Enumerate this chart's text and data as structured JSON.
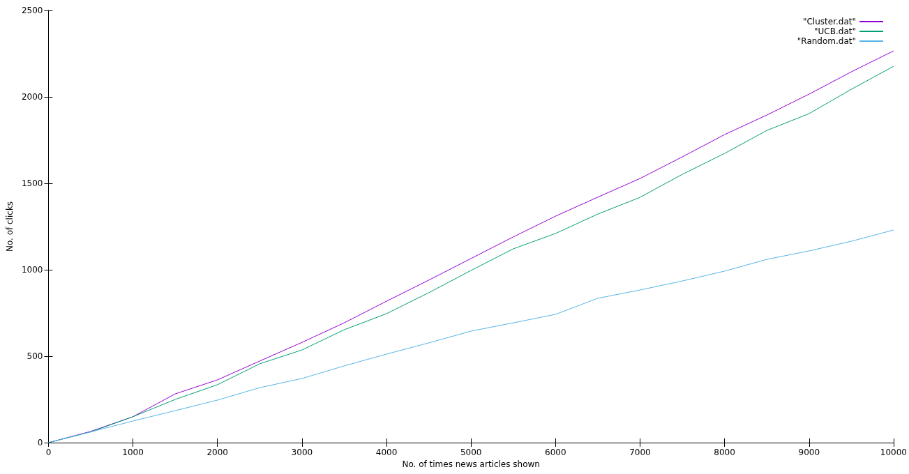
{
  "chart_data": {
    "type": "line",
    "xlabel": "No. of times news articles shown",
    "ylabel": "No. of clicks",
    "x": [
      0,
      500,
      1000,
      1500,
      2000,
      2500,
      3000,
      3500,
      4000,
      4500,
      5000,
      5500,
      6000,
      6500,
      7000,
      7500,
      8000,
      8500,
      9000,
      9500,
      10000
    ],
    "series": [
      {
        "name": "\"Cluster.dat\"",
        "color": "#9400d3",
        "values": [
          0,
          65,
          150,
          282,
          363,
          472,
          580,
          693,
          818,
          940,
          1065,
          1190,
          1310,
          1420,
          1528,
          1653,
          1782,
          1895,
          2016,
          2145,
          2266
        ]
      },
      {
        "name": "\"UCB.dat\"",
        "color": "#009e73",
        "values": [
          0,
          62,
          150,
          250,
          335,
          456,
          536,
          653,
          746,
          867,
          996,
          1121,
          1210,
          1322,
          1419,
          1552,
          1673,
          1806,
          1903,
          2044,
          2177
        ]
      },
      {
        "name": "\"Random.dat\"",
        "color": "#56b4e9",
        "values": [
          0,
          62,
          125,
          185,
          246,
          318,
          371,
          444,
          512,
          577,
          645,
          693,
          742,
          835,
          883,
          935,
          992,
          1060,
          1109,
          1165,
          1230
        ]
      }
    ],
    "xlim": [
      0,
      10000
    ],
    "xticks": [
      0,
      1000,
      2000,
      3000,
      4000,
      5000,
      6000,
      7000,
      8000,
      9000,
      10000
    ],
    "ylim": [
      0,
      2500
    ],
    "yticks": [
      0,
      500,
      1000,
      1500,
      2000,
      2500
    ],
    "grid": false,
    "legend": "top right",
    "marker": "none",
    "line_style": "solid"
  }
}
